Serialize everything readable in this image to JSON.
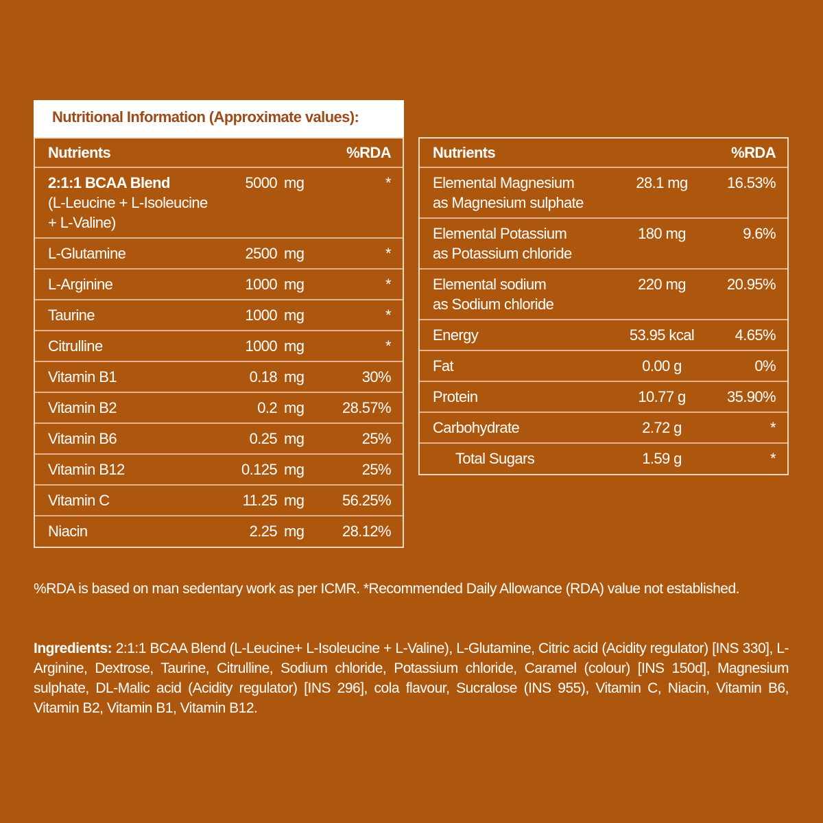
{
  "title": "Nutritional Information (Approximate values):",
  "left_table": {
    "header": [
      "Nutrients",
      "%RDA"
    ],
    "rows": [
      {
        "name": [
          "2:1:1 BCAA Blend",
          "(L-Leucine + L-Isoleucine",
          "+ L-Valine)"
        ],
        "amount": "5000",
        "unit": "mg",
        "rda": "*"
      },
      {
        "name": [
          "L-Glutamine"
        ],
        "amount": "2500",
        "unit": "mg",
        "rda": "*"
      },
      {
        "name": [
          "L-Arginine"
        ],
        "amount": "1000",
        "unit": "mg",
        "rda": "*"
      },
      {
        "name": [
          "Taurine"
        ],
        "amount": "1000",
        "unit": "mg",
        "rda": "*"
      },
      {
        "name": [
          "Citrulline"
        ],
        "amount": "1000",
        "unit": "mg",
        "rda": "*"
      },
      {
        "name": [
          "Vitamin B1"
        ],
        "amount": "0.18",
        "unit": "mg",
        "rda": "30%"
      },
      {
        "name": [
          "Vitamin B2"
        ],
        "amount": "0.2",
        "unit": "mg",
        "rda": "28.57%"
      },
      {
        "name": [
          "Vitamin B6"
        ],
        "amount": "0.25",
        "unit": "mg",
        "rda": "25%"
      },
      {
        "name": [
          "Vitamin B12"
        ],
        "amount": "0.125",
        "unit": "mg",
        "rda": "25%"
      },
      {
        "name": [
          "Vitamin C"
        ],
        "amount": "11.25",
        "unit": "mg",
        "rda": "56.25%"
      },
      {
        "name": [
          "Niacin"
        ],
        "amount": "2.25",
        "unit": "mg",
        "rda": "28.12%"
      }
    ]
  },
  "right_table": {
    "header": [
      "Nutrients",
      "%RDA"
    ],
    "rows": [
      {
        "name": [
          "Elemental Magnesium",
          "as Magnesium sulphate"
        ],
        "amount": "28.1 mg",
        "rda": "16.53%"
      },
      {
        "name": [
          "Elemental Potassium",
          "as Potassium chloride"
        ],
        "amount": "180 mg",
        "rda": "9.6%"
      },
      {
        "name": [
          "Elemental sodium",
          "as Sodium chloride"
        ],
        "amount": "220 mg",
        "rda": "20.95%"
      },
      {
        "name": [
          "Energy"
        ],
        "amount": "53.95 kcal",
        "rda": "4.65%"
      },
      {
        "name": [
          "Fat"
        ],
        "amount": "0.00 g",
        "rda": "0%"
      },
      {
        "name": [
          "Protein"
        ],
        "amount": "10.77 g",
        "rda": "35.90%"
      },
      {
        "name": [
          "Carbohydrate"
        ],
        "amount": "2.72 g",
        "rda": "*"
      },
      {
        "name": [
          "Total Sugars"
        ],
        "amount": "1.59 g",
        "rda": "*"
      }
    ]
  },
  "footnote": "%RDA is based on man sedentary work as per ICMR. *Recommended Daily Allowance (RDA) value not established.",
  "ingredients": {
    "label": "Ingredients:",
    "text": "2:1:1 BCAA Blend (L-Leucine+ L-Isoleucine + L-Valine), L-Glutamine, Citric acid (Acidity regulator) [INS 330], L-Arginine, Dextrose, Taurine, Citrulline, Sodium chloride, Potassium chloride, Caramel (colour) [INS 150d], Magnesium sulphate, DL-Malic acid (Acidity regulator) [INS 296], cola flavour, Sucralose (INS 955), Vitamin C, Niacin, Vitamin B6, Vitamin B2, Vitamin B1, Vitamin B12."
  }
}
